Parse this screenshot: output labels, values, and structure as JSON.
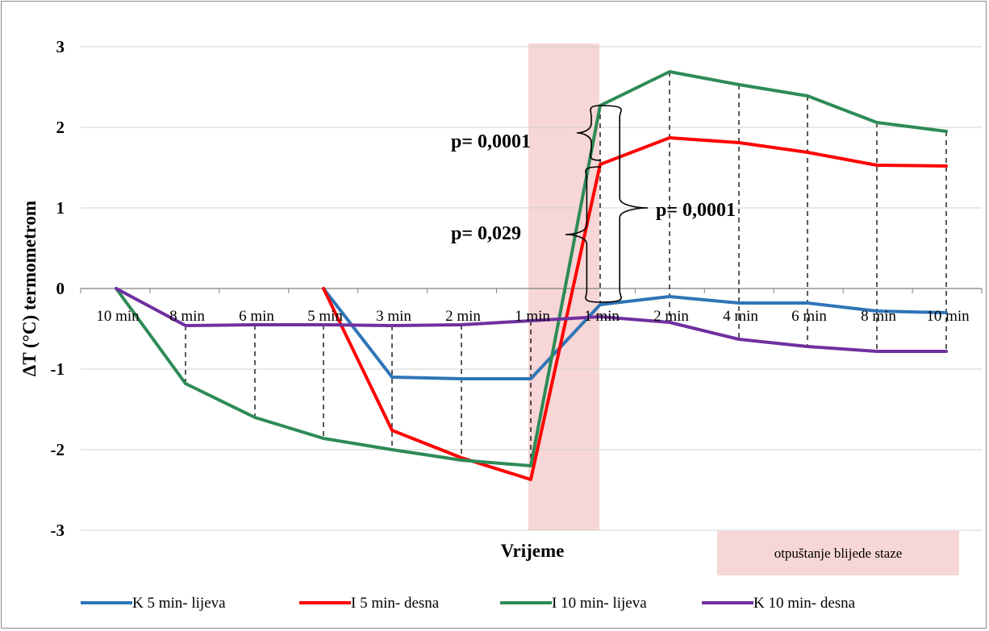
{
  "chart_data": {
    "type": "line",
    "xlabel": "Vrijeme",
    "ylabel": "ΔT (°C) termometrom",
    "ylim": [
      -3,
      3
    ],
    "yticks": [
      3,
      2,
      1,
      0,
      -1,
      -2,
      -3
    ],
    "grid": true,
    "legend_position": "bottom",
    "x_labels": [
      "10 min",
      "8 min",
      "6 min",
      "5 min",
      "3 min",
      "2 min",
      "1 min",
      "1 min",
      "2 min",
      "4 min",
      "6 min",
      "8 min",
      "10 min"
    ],
    "series": [
      {
        "name": "K 5 min- lijeva",
        "color": "#2e75b6",
        "values": [
          null,
          null,
          null,
          0,
          -1.1,
          -1.12,
          -1.12,
          -0.2,
          -0.1,
          -0.18,
          -0.18,
          -0.28,
          -0.3
        ]
      },
      {
        "name": "I 5 min- desna",
        "color": "#ff0000",
        "values": [
          null,
          null,
          null,
          0,
          -1.76,
          -2.1,
          -2.37,
          1.54,
          1.87,
          1.81,
          1.69,
          1.53,
          1.52
        ]
      },
      {
        "name": "I 10 min- lijeva",
        "color": "#2e8b57",
        "values": [
          0,
          -1.18,
          -1.6,
          -1.86,
          -2.0,
          -2.13,
          -2.2,
          2.27,
          2.69,
          2.53,
          2.39,
          2.06,
          1.95
        ]
      },
      {
        "name": "K 10 min- desna",
        "color": "#7030a0",
        "values": [
          0,
          -0.46,
          -0.45,
          -0.45,
          -0.46,
          -0.45,
          -0.4,
          -0.35,
          -0.42,
          -0.63,
          -0.72,
          -0.78,
          -0.78
        ]
      }
    ],
    "shaded_region": {
      "label": "otpuštanje blijede staze",
      "color": "#f4cccc"
    },
    "annotations": [
      {
        "text": "p= 0,0001",
        "between": [
          "I 10 min- lijeva",
          "I 5 min- desna"
        ]
      },
      {
        "text": "p= 0,029",
        "between": [
          "I 5 min- desna",
          "K 5 min- lijeva"
        ]
      },
      {
        "text": "p= 0,0001",
        "between": [
          "I 10 min- lijeva",
          "K 5 min- lijeva"
        ]
      }
    ]
  }
}
